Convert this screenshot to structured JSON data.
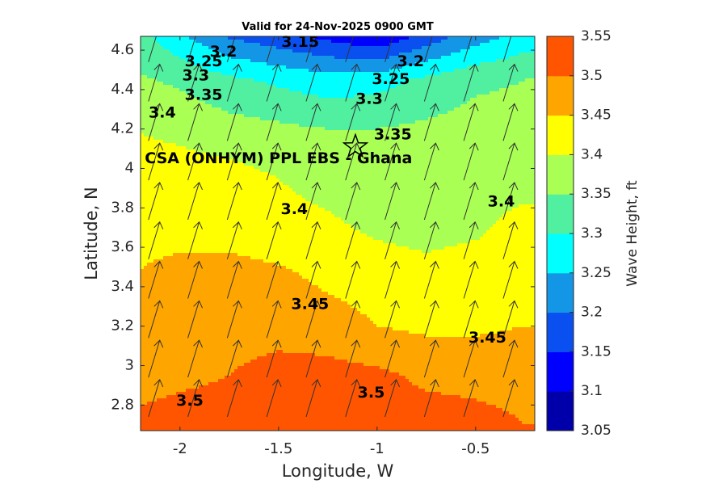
{
  "chart_data": {
    "type": "heatmap",
    "title": "Valid for 24-Nov-2025 0900 GMT",
    "xlabel": "Longitude, W",
    "ylabel": "Latitude, N",
    "colorbar_label": "Wave Height, ft",
    "xlim": [
      -2.2,
      -0.2
    ],
    "ylim": [
      2.67,
      4.67
    ],
    "x_ticks": [
      -2,
      -1.5,
      -1,
      -0.5
    ],
    "x_tick_labels": [
      "-2",
      "-1.5",
      "-1",
      "-0.5"
    ],
    "y_ticks": [
      2.8,
      3.0,
      3.2,
      3.4,
      3.6,
      3.8,
      4.0,
      4.2,
      4.4,
      4.6
    ],
    "y_tick_labels": [
      "2.8",
      "3",
      "3.2",
      "3.4",
      "3.6",
      "3.8",
      "4",
      "4.2",
      "4.4",
      "4.6"
    ],
    "colorbar_ticks": [
      "3.05",
      "3.1",
      "3.15",
      "3.2",
      "3.25",
      "3.3",
      "3.35",
      "3.4",
      "3.45",
      "3.5",
      "3.55"
    ],
    "levels": [
      {
        "min": 3.05,
        "max": 3.1,
        "color": "#0000AA"
      },
      {
        "min": 3.1,
        "max": 3.15,
        "color": "#0000FF"
      },
      {
        "min": 3.15,
        "max": 3.2,
        "color": "#0A50F0"
      },
      {
        "min": 3.2,
        "max": 3.25,
        "color": "#1496E6"
      },
      {
        "min": 3.25,
        "max": 3.3,
        "color": "#00FFFF"
      },
      {
        "min": 3.3,
        "max": 3.35,
        "color": "#50F0A0"
      },
      {
        "min": 3.35,
        "max": 3.4,
        "color": "#AAFF55"
      },
      {
        "min": 3.4,
        "max": 3.45,
        "color": "#FFFF00"
      },
      {
        "min": 3.45,
        "max": 3.5,
        "color": "#FFA500"
      },
      {
        "min": 3.5,
        "max": 3.55,
        "color": "#FF5500"
      }
    ],
    "contour_labels": [
      {
        "text": "3.15",
        "lon": -1.39,
        "lat": 4.64
      },
      {
        "text": "3.2",
        "lon": -1.78,
        "lat": 4.59
      },
      {
        "text": "3.2",
        "lon": -0.83,
        "lat": 4.54
      },
      {
        "text": "3.25",
        "lon": -1.88,
        "lat": 4.54
      },
      {
        "text": "3.25",
        "lon": -0.93,
        "lat": 4.45
      },
      {
        "text": "3.3",
        "lon": -1.92,
        "lat": 4.47
      },
      {
        "text": "3.3",
        "lon": -1.04,
        "lat": 4.35
      },
      {
        "text": "3.35",
        "lon": -1.88,
        "lat": 4.37
      },
      {
        "text": "3.35",
        "lon": -0.92,
        "lat": 4.17
      },
      {
        "text": "3.4",
        "lon": -2.09,
        "lat": 4.28
      },
      {
        "text": "3.4",
        "lon": -1.42,
        "lat": 3.79
      },
      {
        "text": "3.4",
        "lon": -0.37,
        "lat": 3.83
      },
      {
        "text": "3.45",
        "lon": -1.34,
        "lat": 3.31
      },
      {
        "text": "3.45",
        "lon": -0.44,
        "lat": 3.14
      },
      {
        "text": "3.5",
        "lon": -1.03,
        "lat": 2.86
      },
      {
        "text": "3.5",
        "lon": -1.95,
        "lat": 2.82
      }
    ],
    "site": {
      "label": "CSA (ONHYM) PPL EBS  - Ghana",
      "lon": -1.11,
      "lat": 4.11
    },
    "grid_lon": [
      -2.25,
      -2.0,
      -1.75,
      -1.5,
      -1.25,
      -1.0,
      -0.75,
      -0.5,
      -0.25,
      -0.15
    ],
    "grid_lat": [
      4.7,
      4.45,
      4.2,
      3.95,
      3.7,
      3.45,
      3.2,
      2.95,
      2.7
    ],
    "wave_height_grid": [
      [
        3.33,
        3.25,
        3.18,
        3.15,
        3.12,
        3.08,
        3.15,
        3.21,
        3.26,
        3.27
      ],
      [
        3.36,
        3.34,
        3.31,
        3.29,
        3.27,
        3.28,
        3.31,
        3.34,
        3.35,
        3.35
      ],
      [
        3.4,
        3.39,
        3.37,
        3.36,
        3.35,
        3.35,
        3.36,
        3.37,
        3.37,
        3.37
      ],
      [
        3.42,
        3.42,
        3.42,
        3.4,
        3.38,
        3.37,
        3.38,
        3.38,
        3.38,
        3.38
      ],
      [
        3.43,
        3.43,
        3.43,
        3.42,
        3.41,
        3.39,
        3.38,
        3.39,
        3.42,
        3.42
      ],
      [
        3.45,
        3.47,
        3.47,
        3.46,
        3.44,
        3.43,
        3.42,
        3.43,
        3.43,
        3.43
      ],
      [
        3.46,
        3.48,
        3.48,
        3.48,
        3.47,
        3.45,
        3.44,
        3.44,
        3.45,
        3.45
      ],
      [
        3.48,
        3.49,
        3.5,
        3.52,
        3.52,
        3.51,
        3.49,
        3.49,
        3.49,
        3.49
      ],
      [
        3.51,
        3.52,
        3.52,
        3.53,
        3.53,
        3.53,
        3.52,
        3.51,
        3.5,
        3.5
      ]
    ],
    "wind_direction": "north-northeast arrows, uniform field",
    "arrow_spacing_lon": 0.2,
    "arrow_spacing_lat": 0.2
  }
}
